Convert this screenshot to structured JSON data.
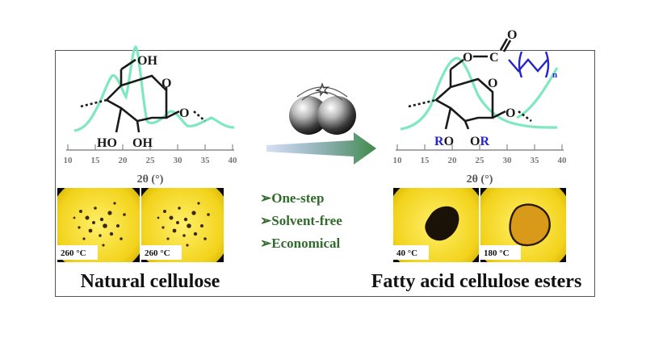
{
  "colors": {
    "curve": "#7ee8c0",
    "axis": "#8a8a8a",
    "tick_label": "#777777",
    "structure": "#1a1a1a",
    "blue": "#2424c8",
    "ring_stroke": "#222222",
    "bullet_text": "#2f6b2a",
    "caption": "#111111",
    "micro_yellow": "#f2d21a",
    "micro_dark": "#3a2a10",
    "micro_bg": "#0a0a0a",
    "arrow_start": "#5b7fc8",
    "arrow_end": "#3f8a46"
  },
  "left_panel": {
    "axis_label": "2θ (°)",
    "ticks": [
      "10",
      "15",
      "20",
      "25",
      "30",
      "35",
      "40"
    ],
    "structure_labels": {
      "oh_top": "OH",
      "ho_left": "HO",
      "oh_right": "OH",
      "o_right": "O"
    },
    "micrographs": [
      {
        "label": "260 °C"
      },
      {
        "label": "260 °C"
      }
    ],
    "caption": "Natural cellulose"
  },
  "middle": {
    "bullets": [
      {
        "symbol": "➢",
        "text": "One-step"
      },
      {
        "symbol": "➢",
        "text": "Solvent-free"
      },
      {
        "symbol": "➢",
        "text": "Economical"
      }
    ],
    "balls_icon": "ball-mill-icon",
    "arrow_icon": "reaction-arrow-icon"
  },
  "right_panel": {
    "axis_label": "2θ (°)",
    "ticks": [
      "10",
      "15",
      "20",
      "25",
      "30",
      "35",
      "40"
    ],
    "structure_labels": {
      "o_chain": "O",
      "c_carbon": "C",
      "o_carbonyl": "O",
      "n_sub": "n",
      "r_left": "R",
      "o_left": "O",
      "o_right": "O",
      "r_right": "R",
      "o_ring": "O"
    },
    "micrographs": [
      {
        "label": "40 °C"
      },
      {
        "label": "180 °C"
      }
    ],
    "caption": "Fatty acid cellulose esters"
  }
}
